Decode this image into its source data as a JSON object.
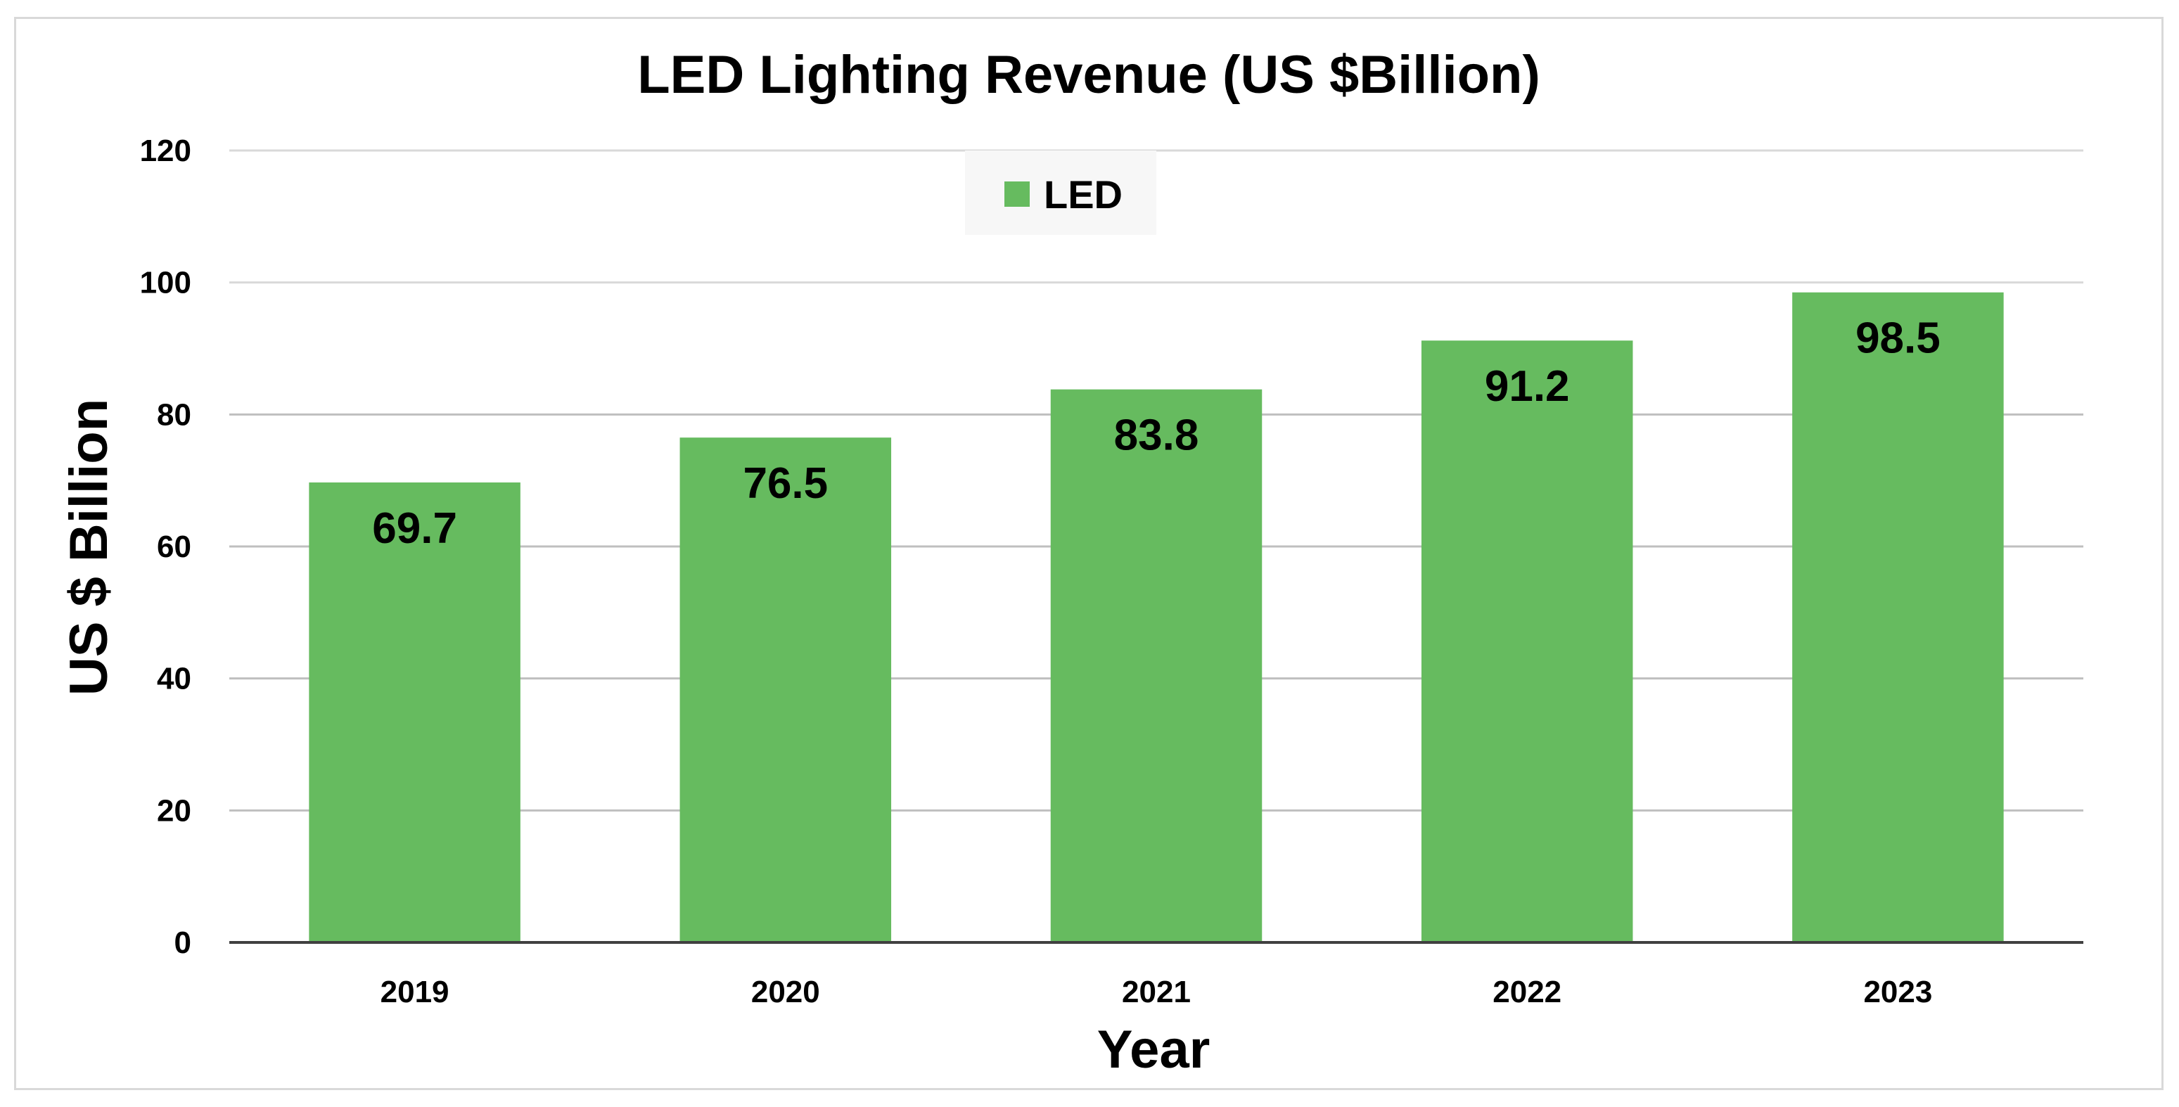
{
  "chart_data": {
    "type": "bar",
    "title": "LED Lighting Revenue (US $Billion)",
    "xlabel": "Year",
    "ylabel": "US $ Billion",
    "categories": [
      "2019",
      "2020",
      "2021",
      "2022",
      "2023"
    ],
    "series": [
      {
        "name": "LED",
        "values": [
          69.7,
          76.5,
          83.8,
          91.2,
          98.5
        ],
        "color": "#66bb5f"
      }
    ],
    "data_labels": [
      "69.7",
      "76.5",
      "83.8",
      "91.2",
      "98.5"
    ],
    "ylim": [
      0,
      120
    ],
    "yticks": [
      "0",
      "20",
      "40",
      "60",
      "80",
      "100",
      "120"
    ],
    "grid": true,
    "legend": "top-center"
  }
}
